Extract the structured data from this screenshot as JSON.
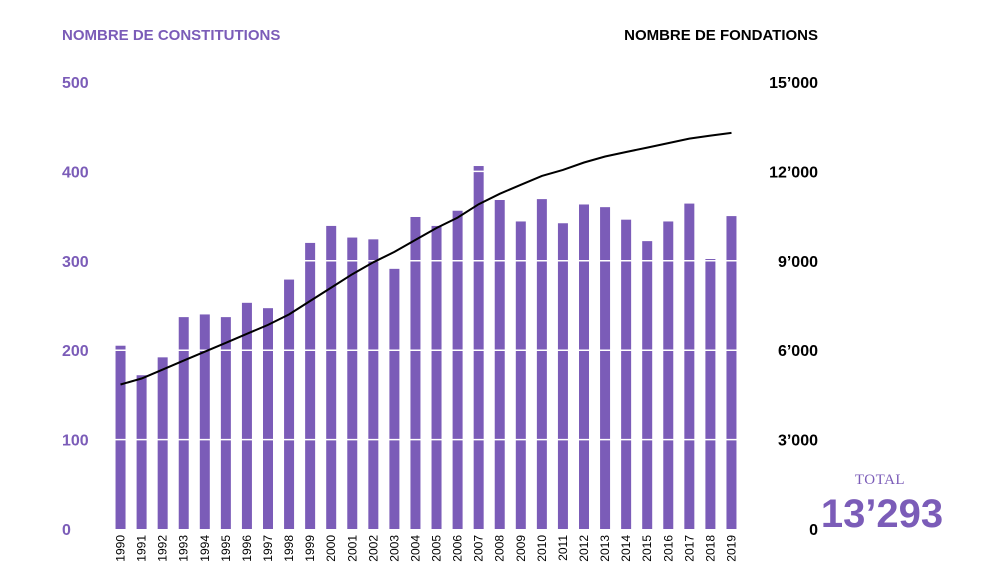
{
  "colors": {
    "bars": "#7b5cb8",
    "line": "#000000",
    "left_axis": "#7b5cb8",
    "right_axis": "#000000",
    "grid": "#ffffff"
  },
  "total": {
    "label": "TOTAL",
    "value": "13’293"
  },
  "chart_data": {
    "type": "bar+line",
    "left_axis_title": "NOMBRE DE CONSTITUTIONS",
    "right_axis_title": "NOMBRE DE FONDATIONS",
    "left_ticks": [
      "0",
      "100",
      "200",
      "300",
      "400",
      "500"
    ],
    "right_ticks": [
      "0",
      "3’000",
      "6’000",
      "9’000",
      "12’000",
      "15’000"
    ],
    "ylim_left": [
      0,
      500
    ],
    "ylim_right": [
      0,
      15000
    ],
    "grid": true,
    "categories": [
      "1990",
      "1991",
      "1992",
      "1993",
      "1994",
      "1995",
      "1996",
      "1997",
      "1998",
      "1999",
      "2000",
      "2001",
      "2002",
      "2003",
      "2004",
      "2005",
      "2006",
      "2007",
      "2008",
      "2009",
      "2010",
      "2011",
      "2012",
      "2013",
      "2014",
      "2015",
      "2016",
      "2017",
      "2018",
      "2019"
    ],
    "series": [
      {
        "type": "bar",
        "axis": "left",
        "values": [
          205,
          172,
          192,
          237,
          240,
          237,
          253,
          247,
          279,
          320,
          339,
          326,
          324,
          291,
          349,
          339,
          356,
          406,
          368,
          344,
          369,
          342,
          363,
          360,
          346,
          322,
          344,
          364,
          302,
          350
        ]
      },
      {
        "type": "line",
        "axis": "right",
        "values": [
          4850,
          5050,
          5350,
          5650,
          5950,
          6250,
          6550,
          6850,
          7200,
          7650,
          8100,
          8550,
          8950,
          9300,
          9700,
          10100,
          10450,
          10900,
          11250,
          11550,
          11850,
          12050,
          12300,
          12500,
          12650,
          12800,
          12950,
          13100,
          13200,
          13293
        ]
      }
    ]
  }
}
